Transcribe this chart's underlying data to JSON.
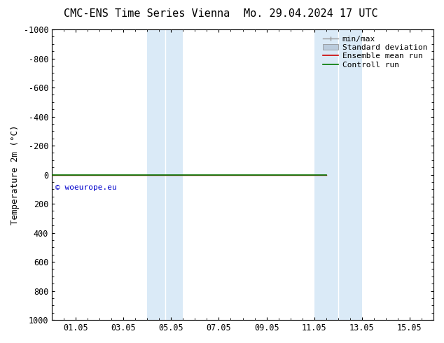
{
  "title_left": "CMC-ENS Time Series Vienna",
  "title_right": "Mo. 29.04.2024 17 UTC",
  "ylabel": "Temperature 2m (°C)",
  "watermark": "© woeurope.eu",
  "watermark_color": "#0000cc",
  "background_color": "#ffffff",
  "plot_bg_color": "#ffffff",
  "ylim_bottom": 1000,
  "ylim_top": -1000,
  "xlim_start": 0.0,
  "xlim_end": 16.0,
  "x_ticks": [
    1,
    3,
    5,
    7,
    9,
    11,
    13,
    15
  ],
  "x_tick_labels": [
    "01.05",
    "03.05",
    "05.05",
    "07.05",
    "09.05",
    "11.05",
    "13.05",
    "15.05"
  ],
  "y_ticks": [
    -1000,
    -800,
    -600,
    -400,
    -200,
    0,
    200,
    400,
    600,
    800,
    1000
  ],
  "y_tick_labels": [
    "-1000",
    "-800",
    "-600",
    "-400",
    "-200",
    "0",
    "200",
    "400",
    "600",
    "800",
    "1000"
  ],
  "shaded_regions": [
    {
      "x_start": 4.0,
      "x_end": 4.75,
      "color": "#ddeeff"
    },
    {
      "x_start": 4.75,
      "x_end": 5.5,
      "color": "#ddeeff"
    },
    {
      "x_start": 11.0,
      "x_end": 11.75,
      "color": "#ddeeff"
    },
    {
      "x_start": 11.75,
      "x_end": 13.0,
      "color": "#ddeeff"
    }
  ],
  "shaded_bands": [
    {
      "x_start": 4.0,
      "x_end": 5.5
    },
    {
      "x_start": 11.0,
      "x_end": 13.0
    }
  ],
  "ensemble_mean_color": "#cc0000",
  "ensemble_mean_lw": 1.0,
  "control_run_color": "#007700",
  "control_run_lw": 1.2,
  "legend_labels": [
    "min/max",
    "Standard deviation",
    "Ensemble mean run",
    "Controll run"
  ],
  "minmax_color": "#999999",
  "std_dev_color": "#bbccdd",
  "title_fontsize": 11,
  "tick_fontsize": 8.5,
  "ylabel_fontsize": 9,
  "legend_fontsize": 8,
  "watermark_fontsize": 8
}
